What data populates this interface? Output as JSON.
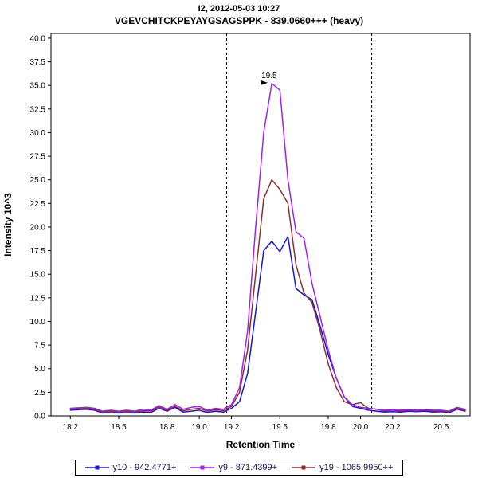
{
  "header": {
    "title_line1": "I2, 2012-05-03 10:27",
    "title_line2": "VGEVCHITCKPEYAYGSAGSPPK - 839.0660+++ (heavy)"
  },
  "colors": {
    "axis": "#000000",
    "boundary_line": "#000000",
    "legend_text": "#16166b",
    "annotation_arrow": "#000000"
  },
  "chart_data": {
    "type": "line",
    "title": "I2, 2012-05-03 10:27",
    "subtitle": "VGEVCHITCKPEYAYGSAGSPPK - 839.0660+++ (heavy)",
    "xlabel": "Retention Time",
    "ylabel": "Intensity 10^3",
    "xlim": [
      18.08,
      20.68
    ],
    "ylim": [
      0,
      40.5
    ],
    "x_ticks": [
      18.2,
      18.5,
      18.8,
      19.0,
      19.2,
      19.5,
      19.8,
      20.0,
      20.2,
      20.5
    ],
    "y_ticks": [
      0,
      2.5,
      5,
      7.5,
      10,
      12.5,
      15,
      17.5,
      20,
      22.5,
      25,
      27.5,
      30,
      32.5,
      35,
      37.5,
      40
    ],
    "grid": false,
    "legend_position": "bottom",
    "integration_boundaries": [
      19.17,
      20.07
    ],
    "peak_annotation": {
      "text": "19.5",
      "x": 19.45,
      "y": 35.2,
      "color": "#a020f0"
    },
    "x": [
      18.2,
      18.25,
      18.3,
      18.35,
      18.4,
      18.45,
      18.5,
      18.55,
      18.6,
      18.65,
      18.7,
      18.75,
      18.8,
      18.85,
      18.9,
      18.95,
      19.0,
      19.05,
      19.1,
      19.15,
      19.2,
      19.25,
      19.3,
      19.35,
      19.4,
      19.45,
      19.5,
      19.55,
      19.6,
      19.65,
      19.7,
      19.75,
      19.8,
      19.85,
      19.9,
      19.95,
      20.0,
      20.05,
      20.1,
      20.15,
      20.2,
      20.25,
      20.3,
      20.35,
      20.4,
      20.45,
      20.5,
      20.55,
      20.6,
      20.65
    ],
    "series": [
      {
        "name": "y10 - 942.4771+",
        "color": "#1515d6",
        "values": [
          0.6,
          0.65,
          0.7,
          0.6,
          0.3,
          0.35,
          0.3,
          0.35,
          0.3,
          0.4,
          0.35,
          0.8,
          0.5,
          0.9,
          0.4,
          0.5,
          0.6,
          0.35,
          0.5,
          0.4,
          0.8,
          1.5,
          4.5,
          11,
          17.5,
          18.5,
          17.4,
          19,
          13.5,
          12.8,
          12.3,
          9.5,
          6.5,
          4,
          2,
          1,
          0.8,
          0.6,
          0.5,
          0.4,
          0.45,
          0.4,
          0.5,
          0.45,
          0.5,
          0.4,
          0.45,
          0.35,
          0.7,
          0.5
        ]
      },
      {
        "name": "y9 - 871.4399+",
        "color": "#a020f0",
        "values": [
          0.8,
          0.85,
          0.9,
          0.8,
          0.5,
          0.6,
          0.5,
          0.6,
          0.5,
          0.7,
          0.6,
          1.1,
          0.7,
          1.2,
          0.7,
          0.9,
          1,
          0.6,
          0.8,
          0.7,
          1.2,
          3,
          9,
          20,
          30,
          35.2,
          34.5,
          25,
          19.5,
          18.8,
          14,
          10.5,
          7,
          4,
          2,
          1.2,
          0.9,
          0.8,
          0.7,
          0.6,
          0.65,
          0.6,
          0.7,
          0.6,
          0.7,
          0.6,
          0.6,
          0.5,
          0.9,
          0.7
        ]
      },
      {
        "name": "y19 - 1065.9950++",
        "color": "#8b3030",
        "values": [
          0.7,
          0.75,
          0.8,
          0.7,
          0.4,
          0.5,
          0.4,
          0.5,
          0.4,
          0.55,
          0.5,
          0.95,
          0.6,
          1,
          0.55,
          0.7,
          0.8,
          0.5,
          0.65,
          0.55,
          1,
          2.5,
          7,
          15,
          23,
          25,
          24,
          22.5,
          16,
          13,
          12,
          9,
          5.5,
          3,
          1.5,
          1.2,
          1.4,
          0.8,
          0.7,
          0.5,
          0.6,
          0.5,
          0.6,
          0.5,
          0.6,
          0.5,
          0.55,
          0.45,
          0.8,
          0.6
        ]
      }
    ]
  }
}
